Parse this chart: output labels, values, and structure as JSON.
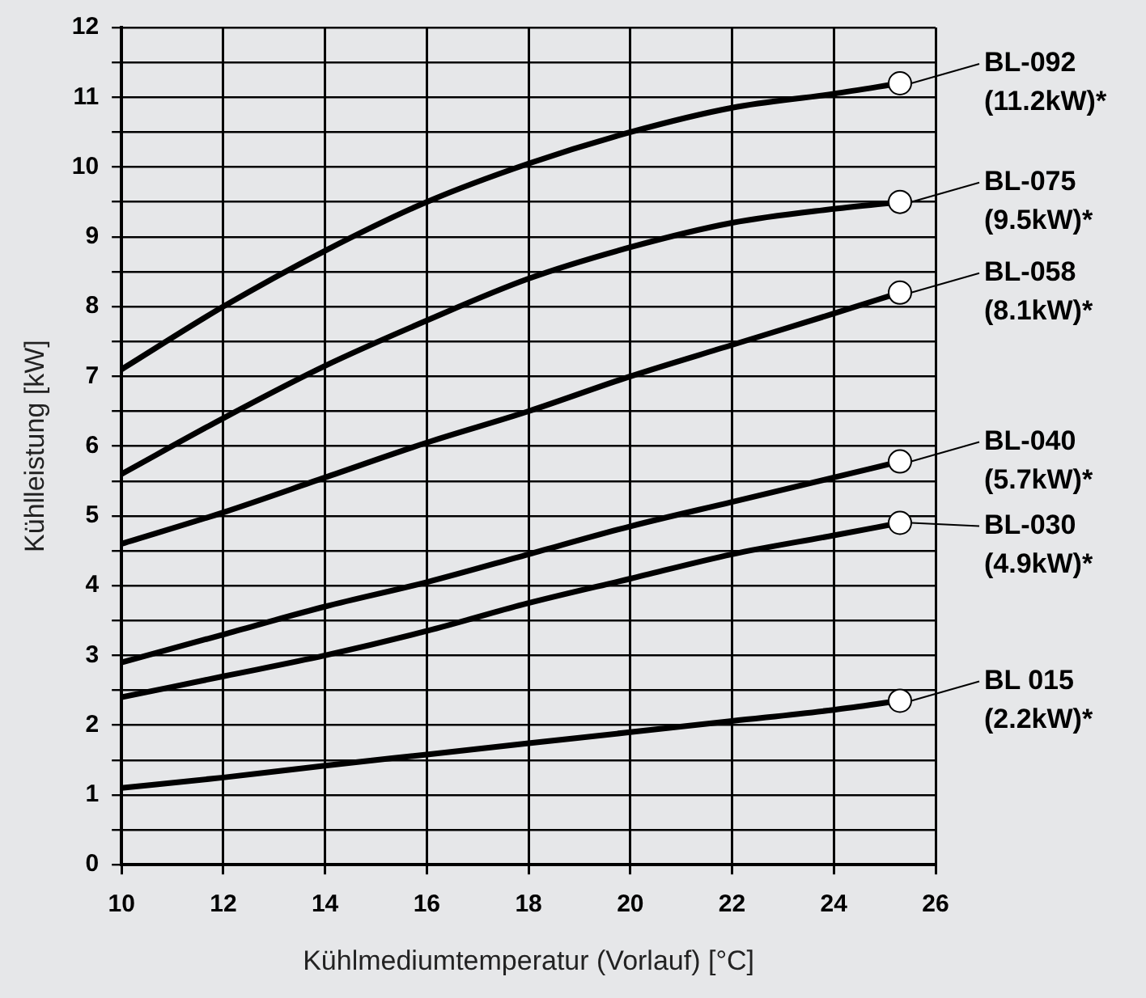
{
  "chart_data": {
    "type": "line",
    "xlabel": "Kühlmediumtemperatur (Vorlauf) [°C]",
    "ylabel": "Kühlleistung [kW]",
    "x": [
      10,
      12,
      14,
      16,
      18,
      20,
      22,
      24,
      25.3
    ],
    "series": [
      {
        "name": "BL-092",
        "color": "#000000",
        "values": [
          7.1,
          8.0,
          8.8,
          9.5,
          10.05,
          10.5,
          10.85,
          11.05,
          11.2
        ]
      },
      {
        "name": "BL-075",
        "color": "#000000",
        "values": [
          5.6,
          6.4,
          7.15,
          7.8,
          8.4,
          8.85,
          9.2,
          9.4,
          9.5
        ]
      },
      {
        "name": "BL-058",
        "color": "#000000",
        "values": [
          4.6,
          5.05,
          5.55,
          6.05,
          6.5,
          7.0,
          7.45,
          7.9,
          8.2
        ]
      },
      {
        "name": "BL-040",
        "color": "#000000",
        "values": [
          2.9,
          3.3,
          3.7,
          4.05,
          4.45,
          4.85,
          5.2,
          5.55,
          5.78
        ]
      },
      {
        "name": "BL-030",
        "color": "#000000",
        "values": [
          2.4,
          2.7,
          3.0,
          3.35,
          3.75,
          4.1,
          4.45,
          4.72,
          4.9
        ]
      },
      {
        "name": "BL 015",
        "color": "#000000",
        "values": [
          1.1,
          1.25,
          1.42,
          1.58,
          1.74,
          1.9,
          2.06,
          2.22,
          2.35
        ]
      }
    ],
    "annotations": [
      "(11.2kW)*",
      "(9.5kW)*",
      "(8.1kW)*",
      "(5.7kW)*",
      "(4.9kW)*",
      "(2.2kW)*"
    ],
    "xlim": [
      10,
      26
    ],
    "xticks": [
      10,
      12,
      14,
      16,
      18,
      20,
      22,
      24,
      26
    ],
    "ylim": [
      0,
      12
    ],
    "yticks": [
      0,
      {
        "value": 0.5,
        "label": null
      },
      1,
      {
        "value": 1.5,
        "label": null
      },
      2,
      {
        "value": 2.5,
        "label": null
      },
      3,
      {
        "value": 3.5,
        "label": null
      },
      4,
      {
        "value": 4.5,
        "label": null
      },
      5,
      {
        "value": 5.5,
        "label": null
      },
      6,
      {
        "value": 6.5,
        "label": null
      },
      7,
      {
        "value": 7.5,
        "label": null
      },
      8,
      {
        "value": 8.5,
        "label": null
      },
      9,
      {
        "value": 9.5,
        "label": null
      },
      10,
      {
        "value": 10.5,
        "label": null
      },
      11,
      {
        "value": 11.5,
        "label": null
      },
      12
    ],
    "grid": true,
    "legend": "right",
    "line_style": "solid"
  }
}
